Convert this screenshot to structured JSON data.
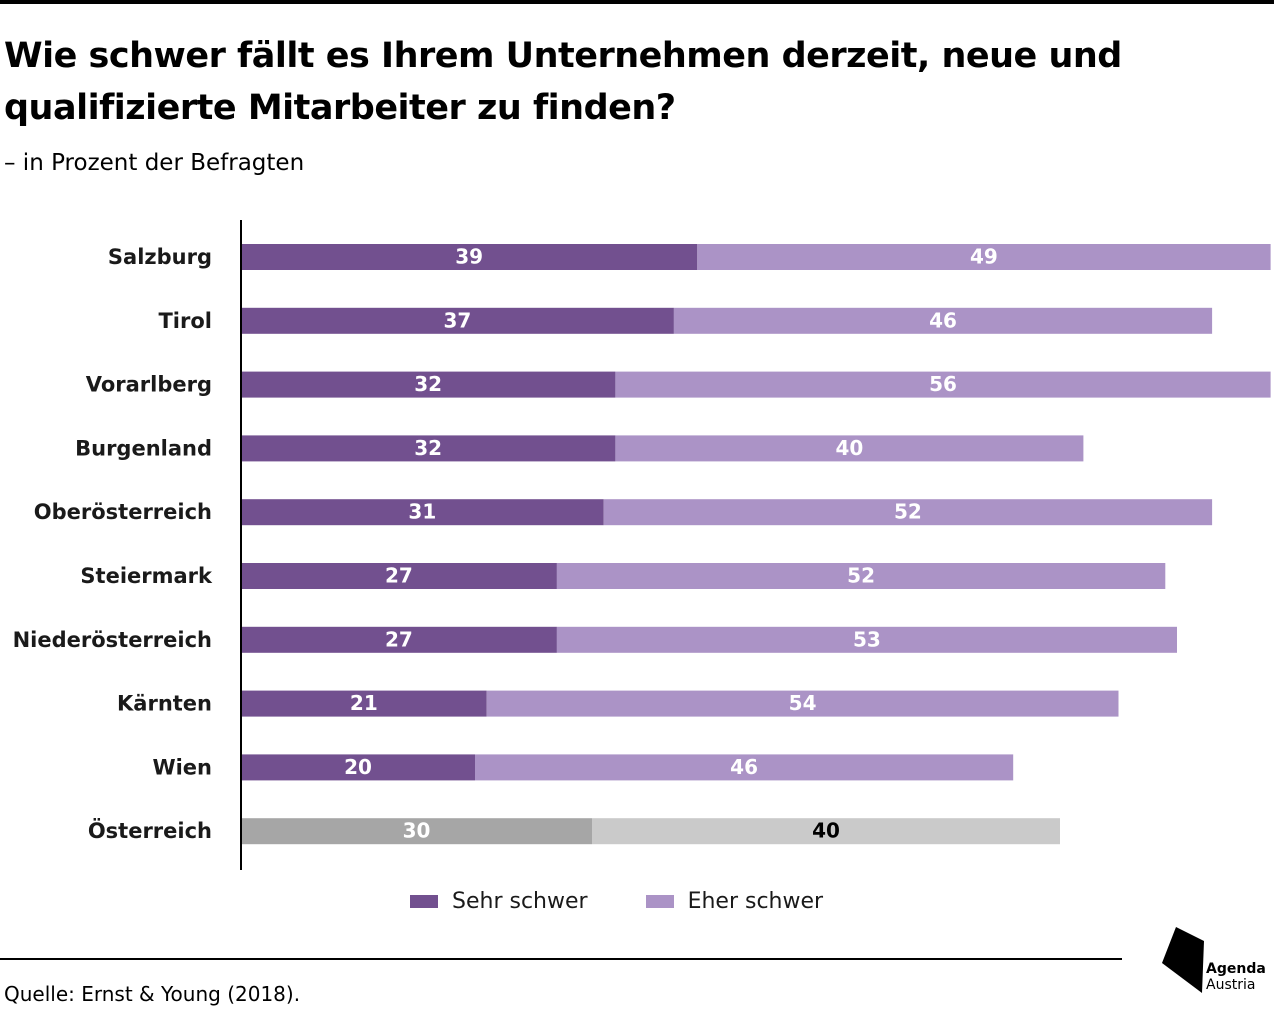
{
  "title": "Wie schwer fällt es Ihrem Unternehmen derzeit, neue und qualifizierte Mitarbeiter zu finden?",
  "subtitle": "– in Prozent der Befragten",
  "source": "Quelle: Ernst & Young (2018).",
  "logo": {
    "line1": "Agenda",
    "line2": "Austria"
  },
  "legend": [
    {
      "label": "Sehr schwer",
      "color": "#72508f"
    },
    {
      "label": "Eher schwer",
      "color": "#ab93c6"
    }
  ],
  "colors": {
    "sehr": "#72508f",
    "eher": "#ab93c6",
    "total_sehr": "#a6a6a6",
    "total_eher": "#cacaca",
    "label_light": "#ffffff",
    "label_dark": "#000000"
  },
  "chart_data": {
    "type": "bar",
    "orientation": "horizontal",
    "stacked": true,
    "title": "Wie schwer fällt es Ihrem Unternehmen derzeit, neue und qualifizierte Mitarbeiter zu finden?",
    "subtitle": "– in Prozent der Befragten",
    "categories": [
      "Salzburg",
      "Tirol",
      "Vorarlberg",
      "Burgenland",
      "Oberösterreich",
      "Steiermark",
      "Niederösterreich",
      "Kärnten",
      "Wien",
      "Österreich"
    ],
    "series": [
      {
        "name": "Sehr schwer",
        "values": [
          39,
          37,
          32,
          32,
          31,
          27,
          27,
          21,
          20,
          30
        ]
      },
      {
        "name": "Eher schwer",
        "values": [
          49,
          46,
          56,
          40,
          52,
          52,
          53,
          54,
          46,
          40
        ]
      }
    ],
    "highlight_category": "Österreich",
    "xlim": [
      0,
      88
    ],
    "data_labels": true,
    "grid": false,
    "legend": "bottom"
  }
}
